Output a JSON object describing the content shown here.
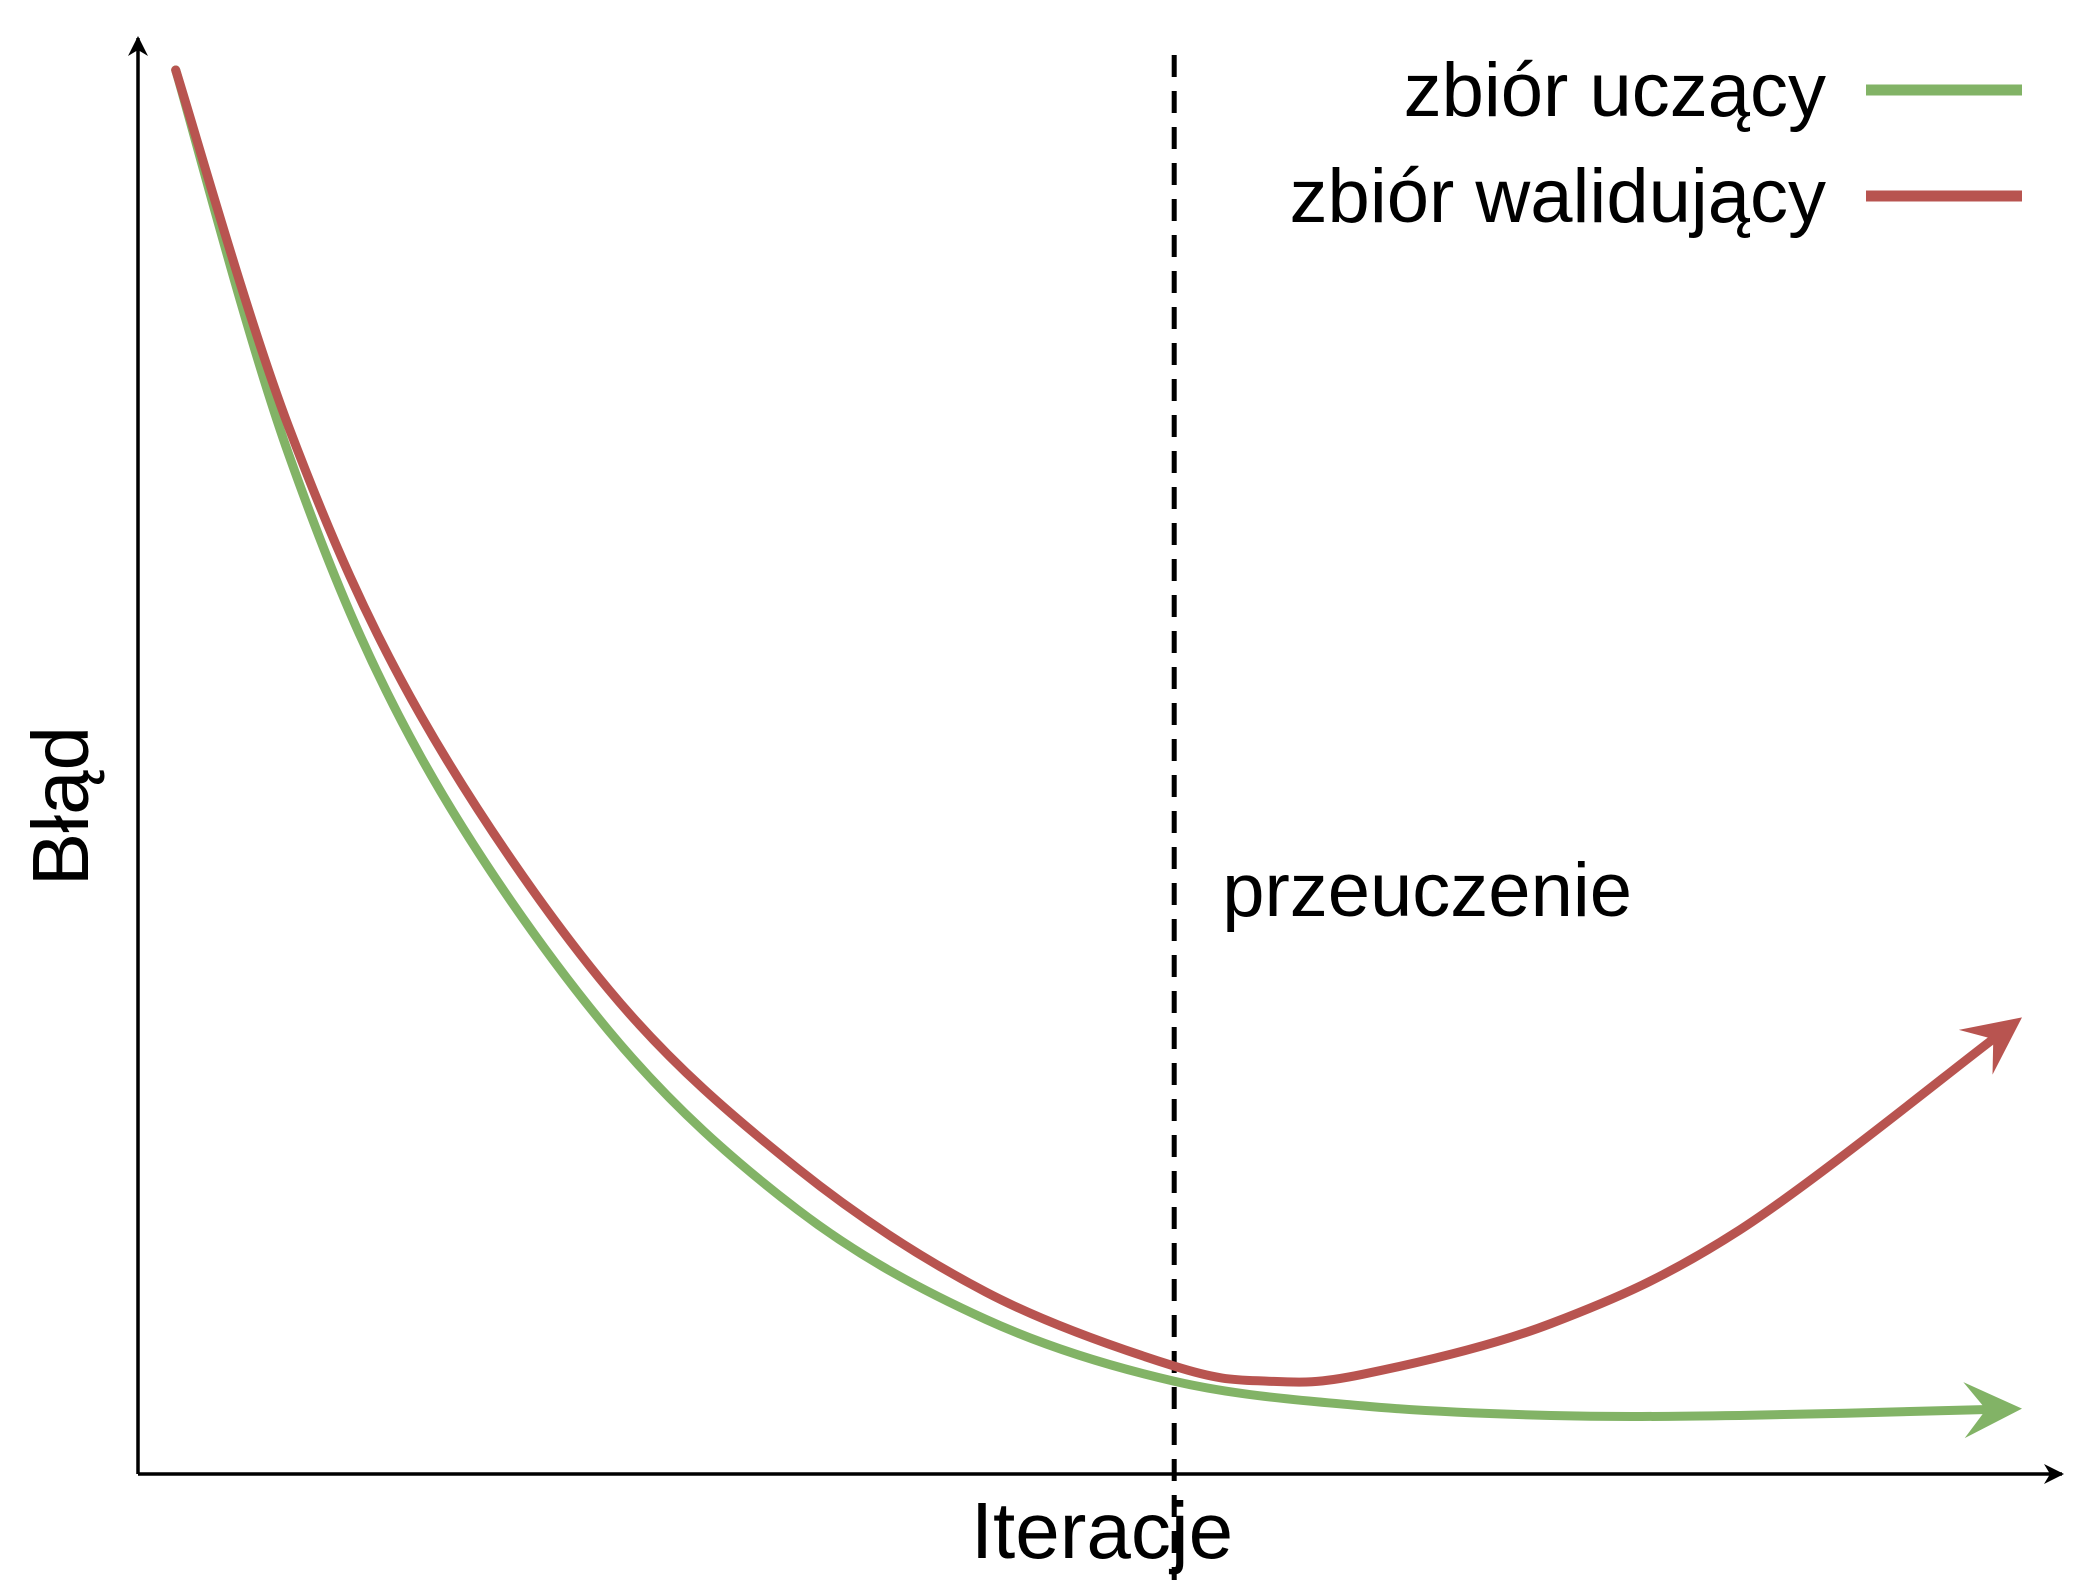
{
  "chart_data": {
    "type": "line",
    "title": "",
    "xlabel": "Iteracje",
    "ylabel": "Błąd",
    "xlim": [
      0,
      100
    ],
    "ylim": [
      0,
      100
    ],
    "grid": false,
    "legend_position": "top-right",
    "series": [
      {
        "name": "zbiór uczący",
        "color": "#82b366",
        "x": [
          2,
          8,
          15,
          25,
          35,
          45,
          55,
          65,
          75,
          85,
          100
        ],
        "y": [
          100,
          72,
          50,
          30,
          17,
          9,
          4.5,
          2.7,
          2.0,
          2.0,
          2.5
        ]
      },
      {
        "name": "zbiór walidujący",
        "color": "#b85450",
        "x": [
          2,
          8,
          15,
          25,
          35,
          45,
          55,
          60,
          65,
          75,
          85,
          100
        ],
        "y": [
          100,
          74,
          53,
          33,
          20,
          11,
          5.6,
          4.5,
          5.0,
          8.7,
          15.5,
          31
        ]
      }
    ],
    "annotations": [
      {
        "text": "przeuczenie",
        "x": 55,
        "style": "vertical-dashed-line"
      }
    ]
  }
}
